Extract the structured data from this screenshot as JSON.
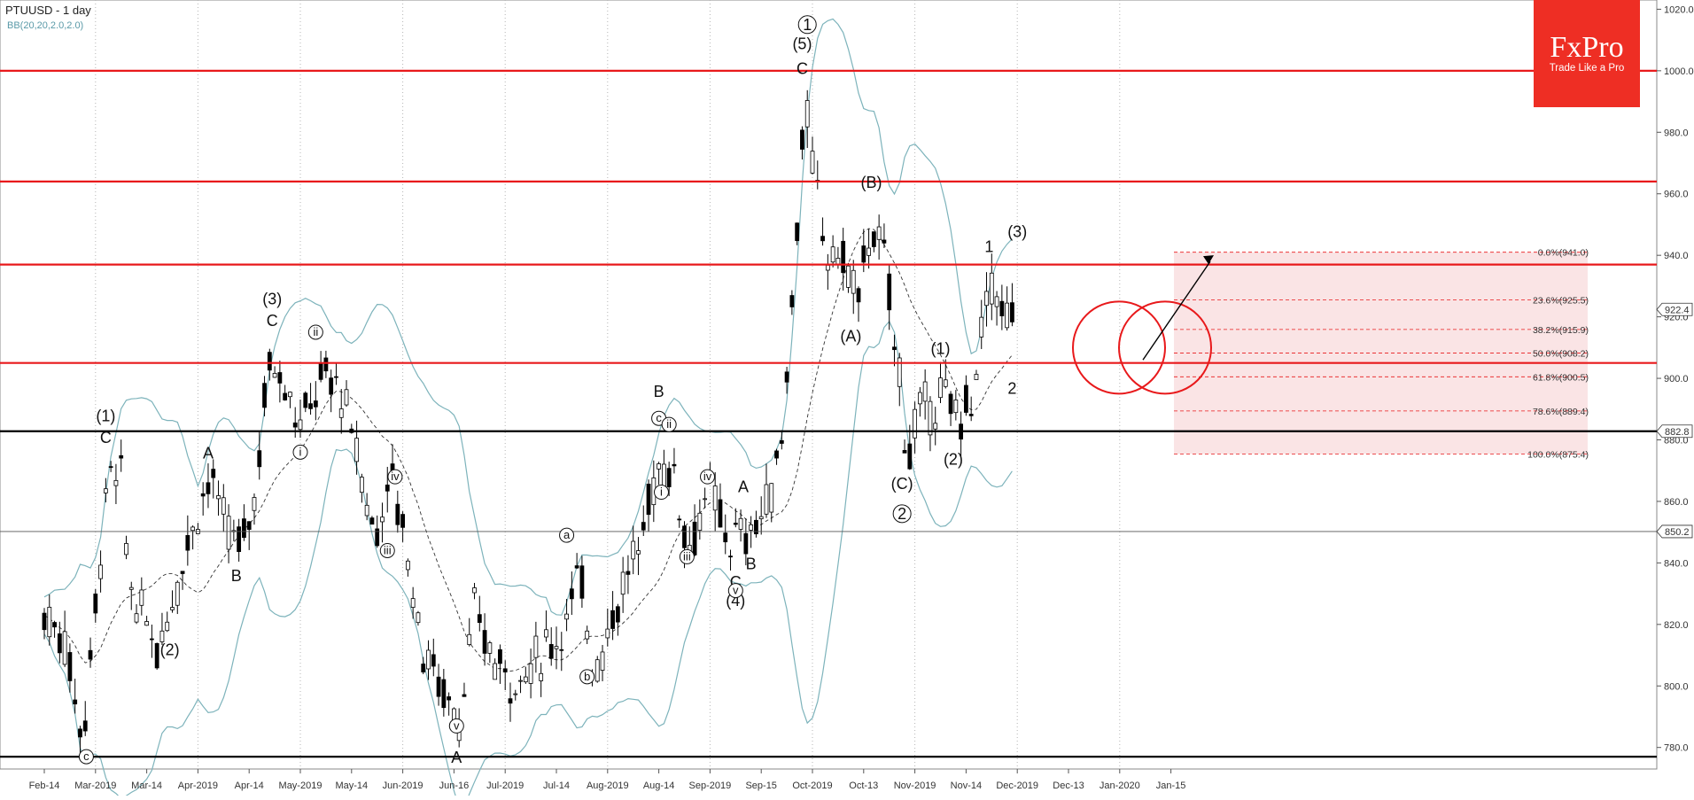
{
  "header": {
    "ticker": "PTUUSD - 1 day",
    "indicator": "BB(20,20,2.0,2.0)"
  },
  "logo": {
    "name": "FxPro",
    "tagline": "Trade Like a Pro"
  },
  "colors": {
    "resistance": "#e8191b",
    "support": "#000000",
    "bollinger": "#7db3bb",
    "candle": "#000000",
    "fib_zone": "#f5cdd0",
    "circle": "#e8191b",
    "logo_bg": "#ee2e24",
    "buy_arrow": "#2aa52a",
    "sell_arrow": "#d62222"
  },
  "chart_data": {
    "type": "candlestick",
    "instrument": "PTUUSD",
    "timeframe": "1 day",
    "y_axis": {
      "min": 773,
      "max": 1023,
      "ticks": [
        "1020.0",
        "1000.0",
        "980.0",
        "960.0",
        "940.0",
        "920.0",
        "900.0",
        "880.0",
        "860.0",
        "840.0",
        "820.0",
        "800.0",
        "780.0"
      ]
    },
    "x_axis": {
      "labels": [
        "Feb-14",
        "Mar-2019",
        "Mar-14",
        "Apr-2019",
        "Apr-14",
        "May-2019",
        "May-14",
        "Jun-2019",
        "Jun-16",
        "Jul-2019",
        "Jul-14",
        "Aug-2019",
        "Aug-14",
        "Sep-2019",
        "Sep-15",
        "Oct-2019",
        "Oct-13",
        "Nov-2019",
        "Nov-14",
        "Dec-2019",
        "Dec-13",
        "Jan-2020",
        "Jan-15"
      ]
    },
    "price_tags": [
      {
        "label": "922.4",
        "value": 922.4
      },
      {
        "label": "882.8",
        "value": 882.8
      },
      {
        "label": "850.2",
        "value": 850.2
      }
    ],
    "horizontal_levels": {
      "resistance": [
        1000,
        964,
        937,
        905
      ],
      "support": [
        882.8,
        777
      ]
    },
    "fibonacci": [
      {
        "label": "0.0%(941.0)",
        "value": 941.0
      },
      {
        "label": "23.6%(925.5)",
        "value": 925.5
      },
      {
        "label": "38.2%(915.9)",
        "value": 915.9
      },
      {
        "label": "50.0%(908.2)",
        "value": 908.2
      },
      {
        "label": "61.8%(900.5)",
        "value": 900.5
      },
      {
        "label": "78.6%(889.4)",
        "value": 889.4
      },
      {
        "label": "100.0%(875.4)",
        "value": 875.4
      }
    ],
    "wave_labels": [
      {
        "text": "(1)",
        "x": 1.2,
        "y": 886
      },
      {
        "text": "C",
        "x": 1.2,
        "y": 879
      },
      {
        "text": "(2)",
        "x": 2.45,
        "y": 810
      },
      {
        "text": "A",
        "x": 3.2,
        "y": 874
      },
      {
        "text": "B",
        "x": 3.75,
        "y": 834
      },
      {
        "text": "(3)",
        "x": 4.45,
        "y": 924
      },
      {
        "text": "C",
        "x": 4.45,
        "y": 917
      },
      {
        "text": "(4)",
        "x": 13.5,
        "y": 826
      },
      {
        "text": "C",
        "x": 13.5,
        "y": 832
      },
      {
        "text": "B",
        "x": 13.8,
        "y": 838
      },
      {
        "text": "A",
        "x": 13.65,
        "y": 863
      },
      {
        "text": "B",
        "x": 12.0,
        "y": 894
      },
      {
        "text": "(5)",
        "x": 14.8,
        "y": 1007
      },
      {
        "text": "C",
        "x": 14.8,
        "y": 999
      },
      {
        "text": "(B)",
        "x": 16.15,
        "y": 962
      },
      {
        "text": "(A)",
        "x": 15.75,
        "y": 912
      },
      {
        "text": "(C)",
        "x": 16.75,
        "y": 864
      },
      {
        "text": "(1)",
        "x": 17.5,
        "y": 908
      },
      {
        "text": "(2)",
        "x": 17.75,
        "y": 872
      },
      {
        "text": "1",
        "x": 18.45,
        "y": 941
      },
      {
        "text": "(3)",
        "x": 19.0,
        "y": 946
      },
      {
        "text": "2",
        "x": 18.9,
        "y": 895
      },
      {
        "text": "A",
        "x": 8.05,
        "y": 775
      }
    ],
    "circled_labels": [
      {
        "text": "1",
        "x": 14.9,
        "y": 1015
      },
      {
        "text": "2",
        "x": 16.75,
        "y": 856
      },
      {
        "text": "c",
        "x": 0.82,
        "y": 777
      },
      {
        "text": "ii",
        "x": 5.3,
        "y": 915
      },
      {
        "text": "i",
        "x": 5.0,
        "y": 876
      },
      {
        "text": "iv",
        "x": 6.85,
        "y": 868
      },
      {
        "text": "iii",
        "x": 6.7,
        "y": 844
      },
      {
        "text": "v",
        "x": 8.05,
        "y": 787
      },
      {
        "text": "a",
        "x": 10.2,
        "y": 849
      },
      {
        "text": "b",
        "x": 10.6,
        "y": 803
      },
      {
        "text": "c",
        "x": 12.0,
        "y": 887
      },
      {
        "text": "ii",
        "x": 12.2,
        "y": 885
      },
      {
        "text": "i",
        "x": 12.05,
        "y": 863
      },
      {
        "text": "iv",
        "x": 12.95,
        "y": 868
      },
      {
        "text": "iii",
        "x": 12.55,
        "y": 842
      },
      {
        "text": "v",
        "x": 13.5,
        "y": 831
      }
    ]
  }
}
